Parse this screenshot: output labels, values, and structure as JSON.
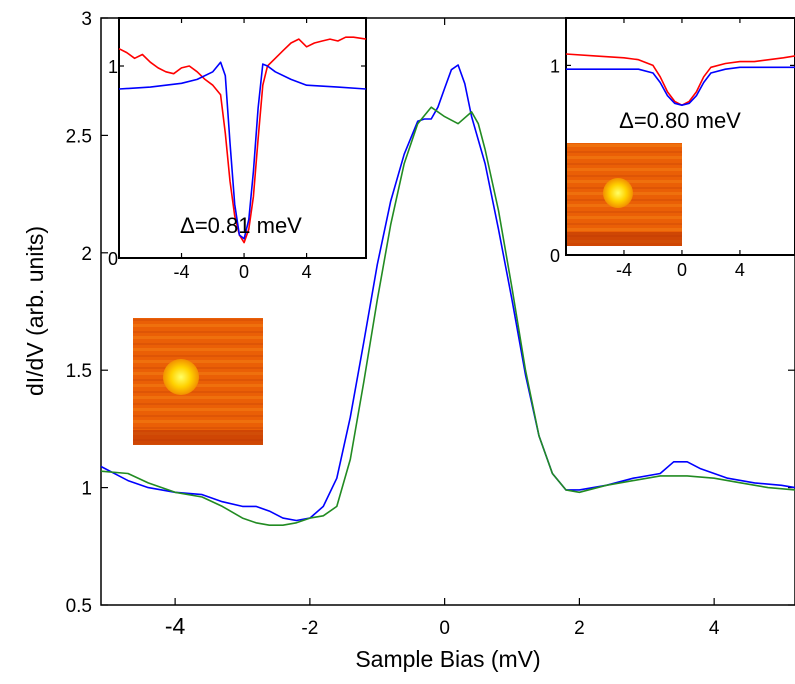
{
  "chart_data": {
    "type": "line",
    "xlabel": "Sample Bias (mV)",
    "ylabel": "dI/dV (arb. units)",
    "xlim": [
      -5.1,
      5.2
    ],
    "ylim": [
      0.5,
      3.0
    ],
    "xticks": [
      {
        "v": -4,
        "label": "-4"
      },
      {
        "v": -2,
        "label": "-2"
      },
      {
        "v": 0,
        "label": "0"
      },
      {
        "v": 2,
        "label": "2"
      },
      {
        "v": 4,
        "label": "4"
      }
    ],
    "yticks": [
      {
        "v": 0.5,
        "label": "0.5"
      },
      {
        "v": 1,
        "label": "1"
      },
      {
        "v": 1.5,
        "label": "1.5"
      },
      {
        "v": 2,
        "label": "2"
      },
      {
        "v": 2.5,
        "label": "2.5"
      },
      {
        "v": 3,
        "label": "3"
      }
    ],
    "series": [
      {
        "color": "#0000ff",
        "points": [
          [
            -5.1,
            1.09
          ],
          [
            -4.7,
            1.03
          ],
          [
            -4.4,
            1.0
          ],
          [
            -4.0,
            0.98
          ],
          [
            -3.6,
            0.97
          ],
          [
            -3.3,
            0.94
          ],
          [
            -3.0,
            0.92
          ],
          [
            -2.8,
            0.92
          ],
          [
            -2.6,
            0.9
          ],
          [
            -2.4,
            0.87
          ],
          [
            -2.2,
            0.86
          ],
          [
            -2.0,
            0.87
          ],
          [
            -1.8,
            0.92
          ],
          [
            -1.6,
            1.04
          ],
          [
            -1.4,
            1.3
          ],
          [
            -1.2,
            1.62
          ],
          [
            -1.0,
            1.95
          ],
          [
            -0.8,
            2.22
          ],
          [
            -0.6,
            2.42
          ],
          [
            -0.4,
            2.56
          ],
          [
            -0.3,
            2.57
          ],
          [
            -0.2,
            2.57
          ],
          [
            -0.1,
            2.62
          ],
          [
            0.0,
            2.7
          ],
          [
            0.1,
            2.78
          ],
          [
            0.2,
            2.8
          ],
          [
            0.3,
            2.72
          ],
          [
            0.4,
            2.58
          ],
          [
            0.6,
            2.38
          ],
          [
            0.8,
            2.1
          ],
          [
            1.0,
            1.8
          ],
          [
            1.2,
            1.48
          ],
          [
            1.4,
            1.22
          ],
          [
            1.6,
            1.06
          ],
          [
            1.8,
            0.99
          ],
          [
            2.0,
            0.99
          ],
          [
            2.4,
            1.01
          ],
          [
            2.8,
            1.04
          ],
          [
            3.2,
            1.06
          ],
          [
            3.4,
            1.11
          ],
          [
            3.6,
            1.11
          ],
          [
            3.8,
            1.08
          ],
          [
            4.2,
            1.04
          ],
          [
            4.6,
            1.02
          ],
          [
            5.0,
            1.01
          ],
          [
            5.2,
            1.0
          ]
        ]
      },
      {
        "color": "#228b22",
        "points": [
          [
            -5.1,
            1.07
          ],
          [
            -4.7,
            1.06
          ],
          [
            -4.4,
            1.02
          ],
          [
            -4.0,
            0.98
          ],
          [
            -3.6,
            0.96
          ],
          [
            -3.3,
            0.92
          ],
          [
            -3.0,
            0.87
          ],
          [
            -2.8,
            0.85
          ],
          [
            -2.6,
            0.84
          ],
          [
            -2.4,
            0.84
          ],
          [
            -2.2,
            0.85
          ],
          [
            -2.0,
            0.87
          ],
          [
            -1.8,
            0.88
          ],
          [
            -1.6,
            0.92
          ],
          [
            -1.4,
            1.12
          ],
          [
            -1.2,
            1.45
          ],
          [
            -1.0,
            1.8
          ],
          [
            -0.8,
            2.12
          ],
          [
            -0.6,
            2.38
          ],
          [
            -0.4,
            2.55
          ],
          [
            -0.2,
            2.62
          ],
          [
            0.0,
            2.58
          ],
          [
            0.2,
            2.55
          ],
          [
            0.4,
            2.6
          ],
          [
            0.5,
            2.55
          ],
          [
            0.6,
            2.44
          ],
          [
            0.8,
            2.18
          ],
          [
            1.0,
            1.85
          ],
          [
            1.2,
            1.5
          ],
          [
            1.4,
            1.22
          ],
          [
            1.6,
            1.06
          ],
          [
            1.8,
            0.99
          ],
          [
            2.0,
            0.98
          ],
          [
            2.4,
            1.01
          ],
          [
            2.8,
            1.03
          ],
          [
            3.2,
            1.05
          ],
          [
            3.6,
            1.05
          ],
          [
            4.0,
            1.04
          ],
          [
            4.4,
            1.02
          ],
          [
            4.8,
            1.0
          ],
          [
            5.2,
            0.99
          ]
        ]
      }
    ],
    "insets": [
      {
        "name": "left",
        "xlim": [
          -8.0,
          7.8
        ],
        "ylim": [
          0.0,
          1.25
        ],
        "xticks": [
          {
            "v": -4,
            "label": "-4"
          },
          {
            "v": 0,
            "label": "0"
          },
          {
            "v": 4,
            "label": "4"
          }
        ],
        "yticks": [
          {
            "v": 0,
            "label": "0"
          },
          {
            "v": 1,
            "label": "1"
          }
        ],
        "annotation": "Δ=0.81 meV",
        "series": [
          {
            "color": "#ff0000",
            "points": [
              [
                -8.0,
                1.09
              ],
              [
                -7.5,
                1.07
              ],
              [
                -7.0,
                1.04
              ],
              [
                -6.5,
                1.06
              ],
              [
                -6.0,
                1.02
              ],
              [
                -5.5,
                0.99
              ],
              [
                -5.0,
                0.97
              ],
              [
                -4.5,
                0.96
              ],
              [
                -4.0,
                0.99
              ],
              [
                -3.5,
                1.0
              ],
              [
                -3.0,
                0.97
              ],
              [
                -2.5,
                0.93
              ],
              [
                -2.0,
                0.9
              ],
              [
                -1.5,
                0.85
              ],
              [
                -1.2,
                0.65
              ],
              [
                -0.9,
                0.4
              ],
              [
                -0.6,
                0.22
              ],
              [
                -0.3,
                0.12
              ],
              [
                0.0,
                0.08
              ],
              [
                0.3,
                0.15
              ],
              [
                0.6,
                0.32
              ],
              [
                0.9,
                0.62
              ],
              [
                1.2,
                0.9
              ],
              [
                1.5,
                1.0
              ],
              [
                2.0,
                1.04
              ],
              [
                2.5,
                1.08
              ],
              [
                3.0,
                1.12
              ],
              [
                3.5,
                1.14
              ],
              [
                4.0,
                1.1
              ],
              [
                4.5,
                1.12
              ],
              [
                5.0,
                1.13
              ],
              [
                5.5,
                1.14
              ],
              [
                6.0,
                1.13
              ],
              [
                6.5,
                1.15
              ],
              [
                7.0,
                1.15
              ],
              [
                7.8,
                1.14
              ]
            ]
          },
          {
            "color": "#0000ff",
            "points": [
              [
                -8.0,
                0.88
              ],
              [
                -6.0,
                0.89
              ],
              [
                -4.0,
                0.91
              ],
              [
                -3.0,
                0.93
              ],
              [
                -2.0,
                0.97
              ],
              [
                -1.5,
                1.02
              ],
              [
                -1.2,
                0.95
              ],
              [
                -0.9,
                0.6
              ],
              [
                -0.6,
                0.28
              ],
              [
                -0.3,
                0.12
              ],
              [
                0.0,
                0.1
              ],
              [
                0.3,
                0.2
              ],
              [
                0.6,
                0.45
              ],
              [
                0.9,
                0.78
              ],
              [
                1.2,
                1.01
              ],
              [
                1.5,
                1.0
              ],
              [
                2.0,
                0.97
              ],
              [
                3.0,
                0.93
              ],
              [
                4.0,
                0.9
              ],
              [
                6.0,
                0.89
              ],
              [
                7.8,
                0.88
              ]
            ]
          }
        ]
      },
      {
        "name": "right",
        "xlim": [
          -8.0,
          7.8
        ],
        "ylim": [
          0.0,
          1.25
        ],
        "xticks": [
          {
            "v": -4,
            "label": "-4"
          },
          {
            "v": 0,
            "label": "0"
          },
          {
            "v": 4,
            "label": "4"
          }
        ],
        "yticks": [
          {
            "v": 0,
            "label": "0"
          },
          {
            "v": 1,
            "label": "1"
          }
        ],
        "annotation": "Δ=0.80 meV",
        "series": [
          {
            "color": "#ff0000",
            "points": [
              [
                -8.0,
                1.06
              ],
              [
                -6.0,
                1.05
              ],
              [
                -4.0,
                1.04
              ],
              [
                -3.0,
                1.03
              ],
              [
                -2.0,
                1.0
              ],
              [
                -1.5,
                0.94
              ],
              [
                -1.0,
                0.86
              ],
              [
                -0.5,
                0.81
              ],
              [
                0.0,
                0.79
              ],
              [
                0.5,
                0.81
              ],
              [
                1.0,
                0.86
              ],
              [
                1.5,
                0.94
              ],
              [
                2.0,
                0.99
              ],
              [
                3.0,
                1.01
              ],
              [
                4.0,
                1.02
              ],
              [
                5.0,
                1.02
              ],
              [
                6.0,
                1.03
              ],
              [
                7.0,
                1.04
              ],
              [
                7.8,
                1.05
              ]
            ]
          },
          {
            "color": "#0000ff",
            "points": [
              [
                -8.0,
                0.98
              ],
              [
                -6.0,
                0.98
              ],
              [
                -4.0,
                0.98
              ],
              [
                -3.0,
                0.98
              ],
              [
                -2.0,
                0.96
              ],
              [
                -1.5,
                0.91
              ],
              [
                -1.0,
                0.84
              ],
              [
                -0.5,
                0.8
              ],
              [
                0.0,
                0.79
              ],
              [
                0.5,
                0.8
              ],
              [
                1.0,
                0.84
              ],
              [
                1.5,
                0.91
              ],
              [
                2.0,
                0.96
              ],
              [
                3.0,
                0.98
              ],
              [
                4.0,
                0.99
              ],
              [
                6.0,
                0.99
              ],
              [
                7.8,
                0.99
              ]
            ]
          }
        ]
      }
    ]
  }
}
